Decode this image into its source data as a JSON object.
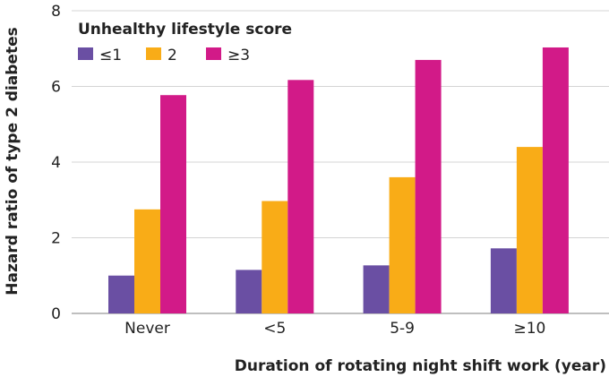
{
  "chart_data": {
    "type": "bar",
    "categories": [
      "Never",
      "<5",
      "5-9",
      "≥10"
    ],
    "series": [
      {
        "name": "≤1",
        "color": "#6a4fa3",
        "values": [
          1.0,
          1.15,
          1.27,
          1.72
        ]
      },
      {
        "name": "2",
        "color": "#f9ac17",
        "values": [
          2.75,
          2.97,
          3.6,
          4.4
        ]
      },
      {
        "name": "≥3",
        "color": "#d21a88",
        "values": [
          5.77,
          6.17,
          6.7,
          7.03
        ]
      }
    ],
    "ylim": [
      0,
      8
    ],
    "yticks": [
      "0",
      "2",
      "4",
      "6",
      "8"
    ],
    "ylabel": "Hazard ratio of type 2 diabetes",
    "xlabel": "Duration of rotating night shift work (year)",
    "legend": {
      "title": "Unhealthy lifestyle score",
      "placement": "top-left"
    },
    "grid": true,
    "colors": {
      "grid": "#d4d4d4",
      "background": "#ffffff",
      "text": "#222222"
    }
  }
}
